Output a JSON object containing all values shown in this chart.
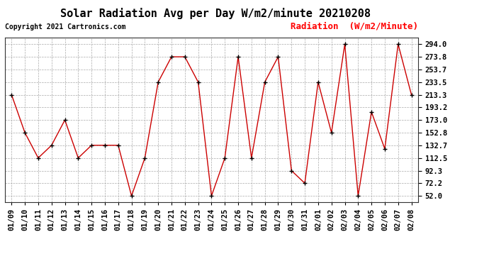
{
  "title": "Solar Radiation Avg per Day W/m2/minute 20210208",
  "copyright": "Copyright 2021 Cartronics.com",
  "legend_label": "Radiation  (W/m2/Minute)",
  "dates": [
    "01/09",
    "01/10",
    "01/11",
    "01/12",
    "01/13",
    "01/14",
    "01/15",
    "01/16",
    "01/17",
    "01/18",
    "01/19",
    "01/20",
    "01/21",
    "01/22",
    "01/23",
    "01/24",
    "01/25",
    "01/26",
    "01/27",
    "01/28",
    "01/29",
    "01/30",
    "01/31",
    "02/01",
    "02/02",
    "02/03",
    "02/04",
    "02/05",
    "02/06",
    "02/07",
    "02/08"
  ],
  "values": [
    213.3,
    152.8,
    112.5,
    132.7,
    173.0,
    112.5,
    132.7,
    132.7,
    132.7,
    52.0,
    112.5,
    233.5,
    273.8,
    273.8,
    233.5,
    52.0,
    112.5,
    273.8,
    112.5,
    233.5,
    273.8,
    92.3,
    72.2,
    233.5,
    152.8,
    294.0,
    52.0,
    186.0,
    127.0,
    294.0,
    213.3
  ],
  "yticks": [
    52.0,
    72.2,
    92.3,
    112.5,
    132.7,
    152.8,
    173.0,
    193.2,
    213.3,
    233.5,
    253.7,
    273.8,
    294.0
  ],
  "ylim": [
    42.0,
    305.0
  ],
  "line_color": "#cc0000",
  "marker_color": "#000000",
  "grid_color": "#aaaaaa",
  "background_color": "#ffffff",
  "title_fontsize": 11,
  "copyright_fontsize": 7,
  "legend_fontsize": 9,
  "tick_fontsize": 7.5
}
